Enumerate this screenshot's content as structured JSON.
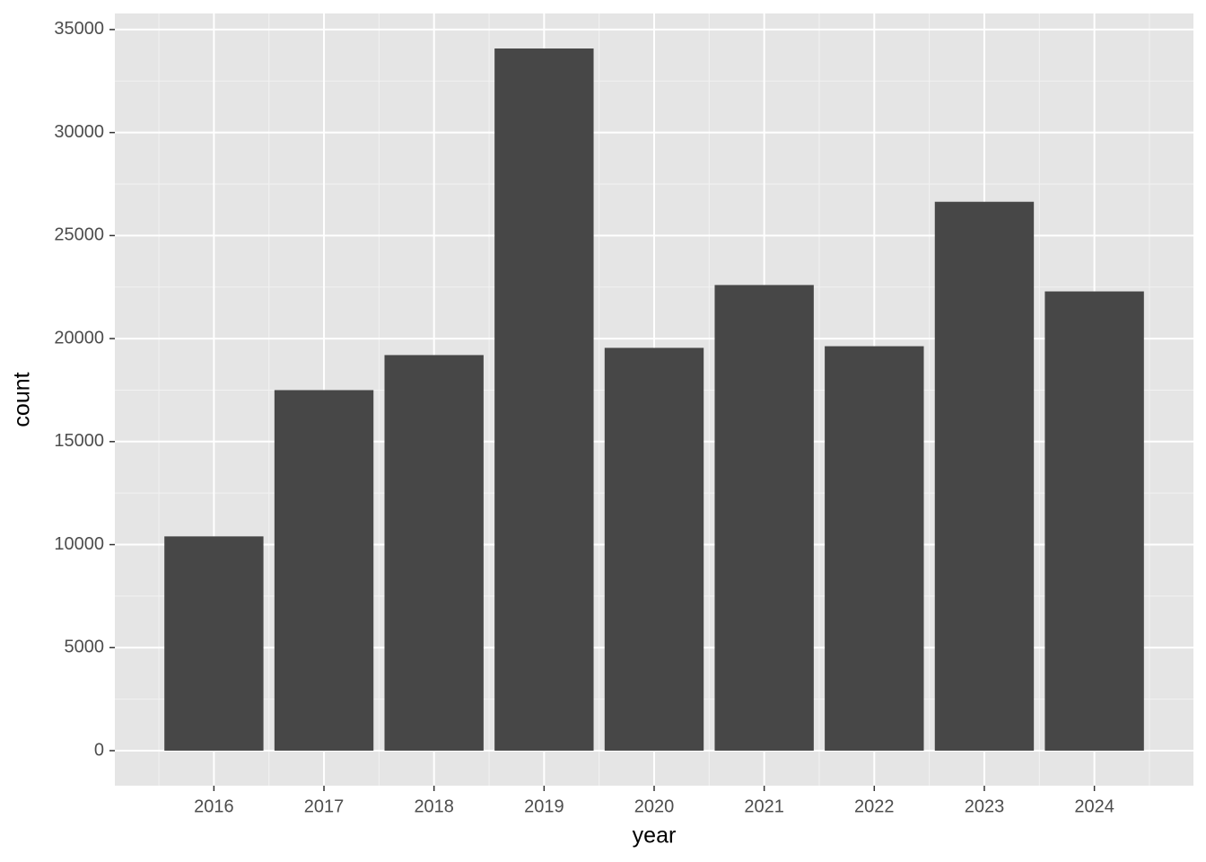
{
  "chart_data": {
    "type": "bar",
    "x": [
      2016,
      2017,
      2018,
      2019,
      2020,
      2021,
      2022,
      2023,
      2024
    ],
    "values": [
      10400,
      17500,
      19200,
      34080,
      19550,
      22600,
      19630,
      26640,
      22290
    ],
    "color": "#474747",
    "x_label": "year",
    "y_label": "count",
    "xlim": [
      2015.1,
      2024.9
    ],
    "xticks": [
      2016,
      2017,
      2018,
      2019,
      2020,
      2021,
      2022,
      2023,
      2024
    ],
    "ylim": [
      -1700,
      35780
    ],
    "yticks": [
      0,
      5000,
      10000,
      15000,
      20000,
      25000,
      30000,
      35000
    ],
    "grid": true
  }
}
